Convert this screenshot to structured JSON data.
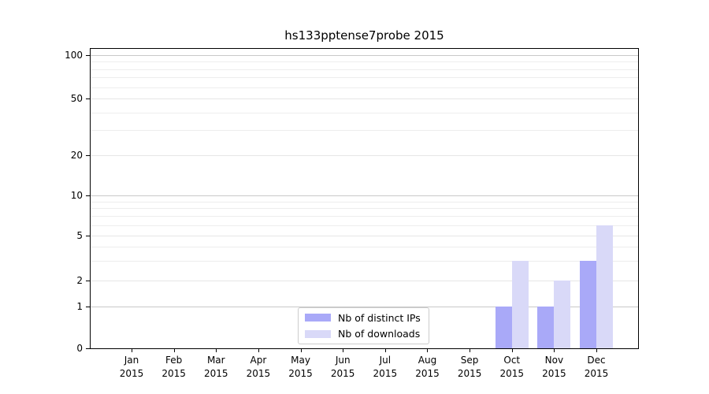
{
  "chart_data": {
    "type": "bar",
    "title": "hs133pptense7probe 2015",
    "categories": [
      "Jan 2015",
      "Feb 2015",
      "Mar 2015",
      "Apr 2015",
      "May 2015",
      "Jun 2015",
      "Jul 2015",
      "Aug 2015",
      "Sep 2015",
      "Oct 2015",
      "Nov 2015",
      "Dec 2015"
    ],
    "series": [
      {
        "name": "Nb of distinct IPs",
        "color": "#a9a9f8",
        "values": [
          0,
          0,
          0,
          0,
          0,
          0,
          0,
          0,
          0,
          1,
          1,
          3
        ]
      },
      {
        "name": "Nb of downloads",
        "color": "#d9d9f8",
        "values": [
          0,
          0,
          0,
          0,
          0,
          0,
          0,
          0,
          0,
          3,
          2,
          6
        ]
      }
    ],
    "yticks": [
      0,
      1,
      2,
      5,
      10,
      20,
      50,
      100
    ],
    "ylim": [
      0,
      110
    ],
    "yscale": "log-like",
    "xlabel": "",
    "ylabel": "",
    "grid": "horizontal",
    "legend_position": "inside-bottom-center"
  },
  "colors": {
    "background": "#ffffff",
    "axis": "#000000",
    "grid_minor": "#ededed",
    "grid_labeled": "#e6e6e6",
    "grid_decade": "#c9c9c9",
    "legend_border": "#cccccc"
  }
}
